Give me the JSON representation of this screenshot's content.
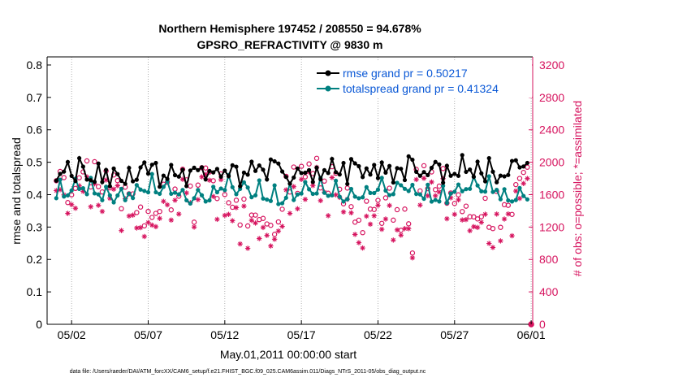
{
  "colors": {
    "rmse": "#000000",
    "totalspread": "#008080",
    "obs": "#d6135e",
    "legend_text": "#0a58d6",
    "axis": "#000000"
  },
  "chart_data": {
    "type": "line",
    "title": "Northern Hemisphere 197452 / 208550 = 94.678%",
    "subtitle": "GPSRO_REFRACTIVITY @ 9830 m",
    "xlabel": "May.01,2011 00:00:00 start",
    "ylabel": "rmse and totalspread",
    "y2label": "# of obs: o=possible; *=assimilated",
    "footer": "data file: /Users/raeder/DAI/ATM_forcXX/CAM6_setup/f.e21.FHIST_BGC.f09_025.CAM6assim.011/Diags_NTrS_2011-05/obs_diag_output.nc",
    "x_start_day": 1,
    "x_end_day": 32,
    "xlim": [
      0.4,
      32.1
    ],
    "ylim": [
      0,
      0.825
    ],
    "y2lim": [
      0,
      3300
    ],
    "xticks": [
      {
        "day": 2,
        "label": "05/02"
      },
      {
        "day": 7,
        "label": "05/07"
      },
      {
        "day": 12,
        "label": "05/12"
      },
      {
        "day": 17,
        "label": "05/17"
      },
      {
        "day": 22,
        "label": "05/22"
      },
      {
        "day": 27,
        "label": "05/27"
      },
      {
        "day": 32,
        "label": "06/01"
      }
    ],
    "yticks": [
      {
        "value": 0,
        "label": "0"
      },
      {
        "value": 0.1,
        "label": "0.1"
      },
      {
        "value": 0.2,
        "label": "0.2"
      },
      {
        "value": 0.3,
        "label": "0.3"
      },
      {
        "value": 0.4,
        "label": "0.4"
      },
      {
        "value": 0.5,
        "label": "0.5"
      },
      {
        "value": 0.6,
        "label": "0.6"
      },
      {
        "value": 0.7,
        "label": "0.7"
      },
      {
        "value": 0.8,
        "label": "0.8"
      }
    ],
    "y2ticks": [
      {
        "value": 0,
        "label": "0"
      },
      {
        "value": 400,
        "label": "400"
      },
      {
        "value": 800,
        "label": "800"
      },
      {
        "value": 1200,
        "label": "1200"
      },
      {
        "value": 1600,
        "label": "1600"
      },
      {
        "value": 2000,
        "label": "2000"
      },
      {
        "value": 2400,
        "label": "2400"
      },
      {
        "value": 2800,
        "label": "2800"
      },
      {
        "value": 3200,
        "label": "3200"
      }
    ],
    "legend_position": "top-right",
    "series": [
      {
        "name": "rmse grand pr = 0.50217",
        "key": "rmse"
      },
      {
        "name": "totalspread grand pr = 0.41324",
        "key": "totalspread"
      }
    ],
    "extra_markers": {
      "final_obs_day": 32,
      "final_obs_value": 0
    }
  }
}
